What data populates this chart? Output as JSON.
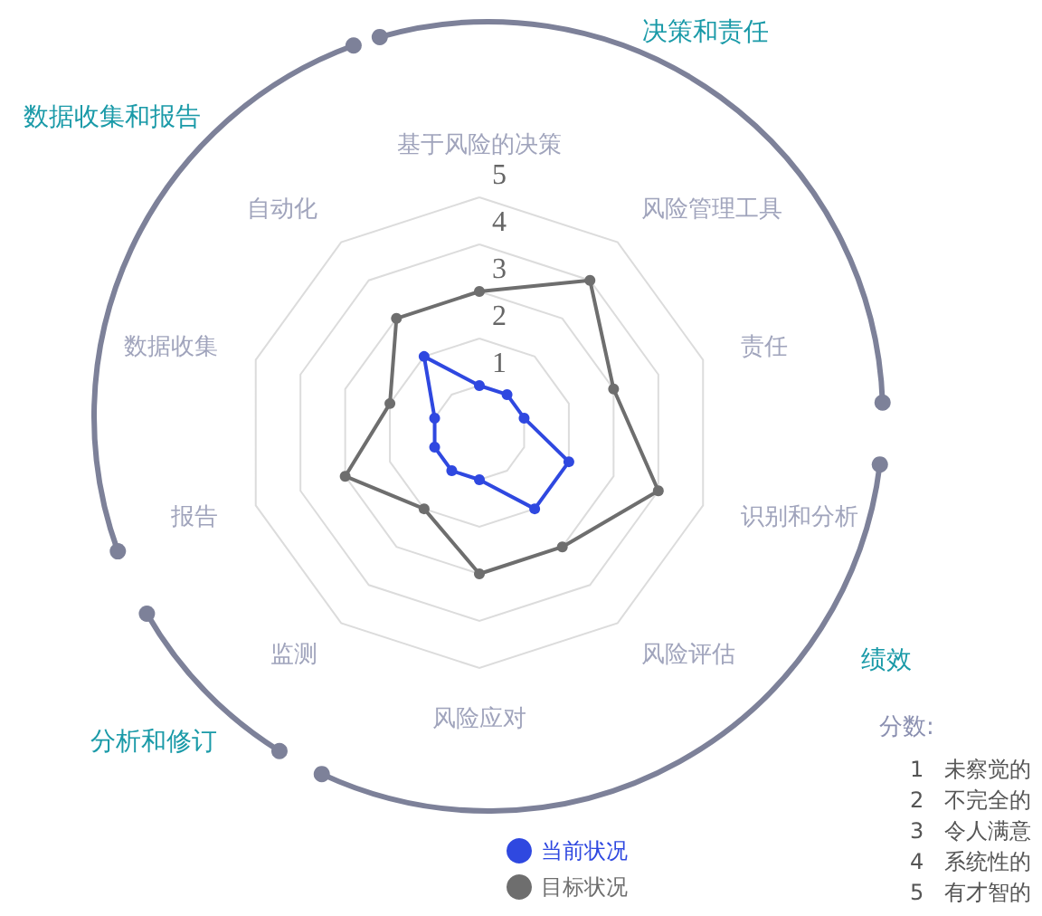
{
  "chart_data": {
    "type": "radar",
    "categories": [
      "基于风险的决策",
      "风险管理工具",
      "责任",
      "识别和分析",
      "风险评估",
      "风险应对",
      "监测",
      "报告",
      "数据收集",
      "自动化"
    ],
    "series": [
      {
        "name": "当前状况",
        "color": "#2f48e0",
        "values": [
          1,
          1,
          1,
          2,
          2,
          1,
          1,
          1,
          1,
          2
        ]
      },
      {
        "name": "目标状况",
        "color": "#6e6e6e",
        "values": [
          3,
          4,
          3,
          4,
          3,
          3,
          2,
          3,
          2,
          3
        ]
      }
    ],
    "ylim": [
      0,
      5
    ],
    "yticks": [
      1,
      2,
      3,
      4,
      5
    ],
    "marker": "circle",
    "legend": "bottom",
    "annotations": [
      "决策和责任",
      "绩效",
      "分析和修订",
      "数据收集和报告",
      "分数:",
      "1   未察觉的",
      "2   不完全的",
      "3   令人满意",
      "4   系统性的",
      "5   有才智的"
    ]
  }
}
